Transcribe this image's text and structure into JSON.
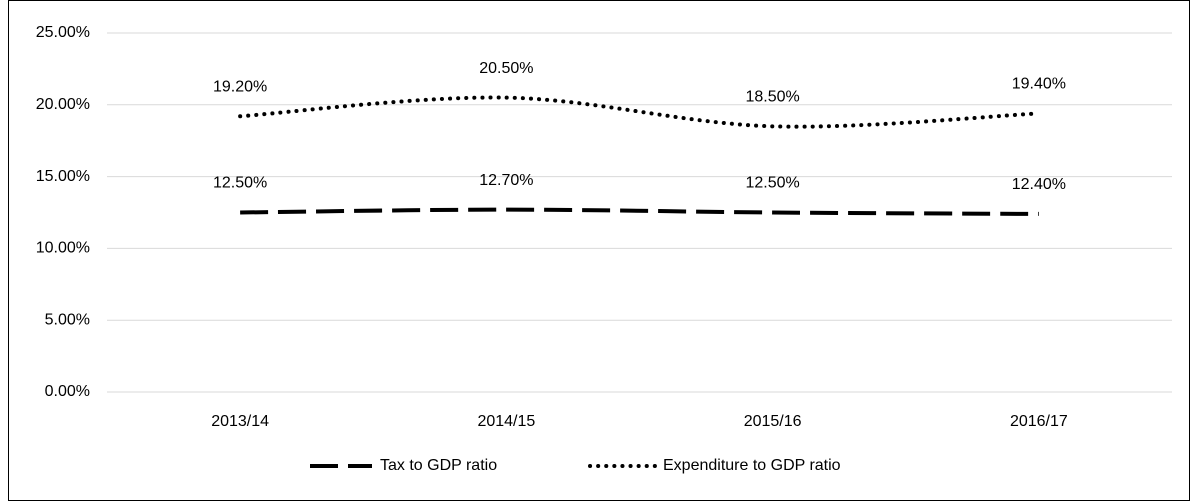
{
  "chart_data": {
    "type": "line",
    "categories": [
      "2013/14",
      "2014/15",
      "2015/16",
      "2016/17"
    ],
    "series": [
      {
        "name": "Tax to GDP ratio",
        "color": "#000000",
        "style": "dashed",
        "values": [
          12.5,
          12.7,
          12.5,
          12.4
        ],
        "value_labels": [
          "12.50%",
          "12.70%",
          "12.50%",
          "12.40%"
        ]
      },
      {
        "name": "Expenditure to GDP ratio",
        "color": "#000000",
        "style": "dotted",
        "values": [
          19.2,
          20.5,
          18.5,
          19.4
        ],
        "value_labels": [
          "19.20%",
          "20.50%",
          "18.50%",
          "19.40%"
        ]
      }
    ],
    "ylim": [
      0,
      25
    ],
    "yticks": [
      {
        "value": 0,
        "label": "0.00%"
      },
      {
        "value": 5,
        "label": "5.00%"
      },
      {
        "value": 10,
        "label": "10.00%"
      },
      {
        "value": 15,
        "label": "15.00%"
      },
      {
        "value": 20,
        "label": "20.00%"
      },
      {
        "value": 25,
        "label": "25.00%"
      }
    ],
    "grid": true,
    "legend": "bottom"
  }
}
